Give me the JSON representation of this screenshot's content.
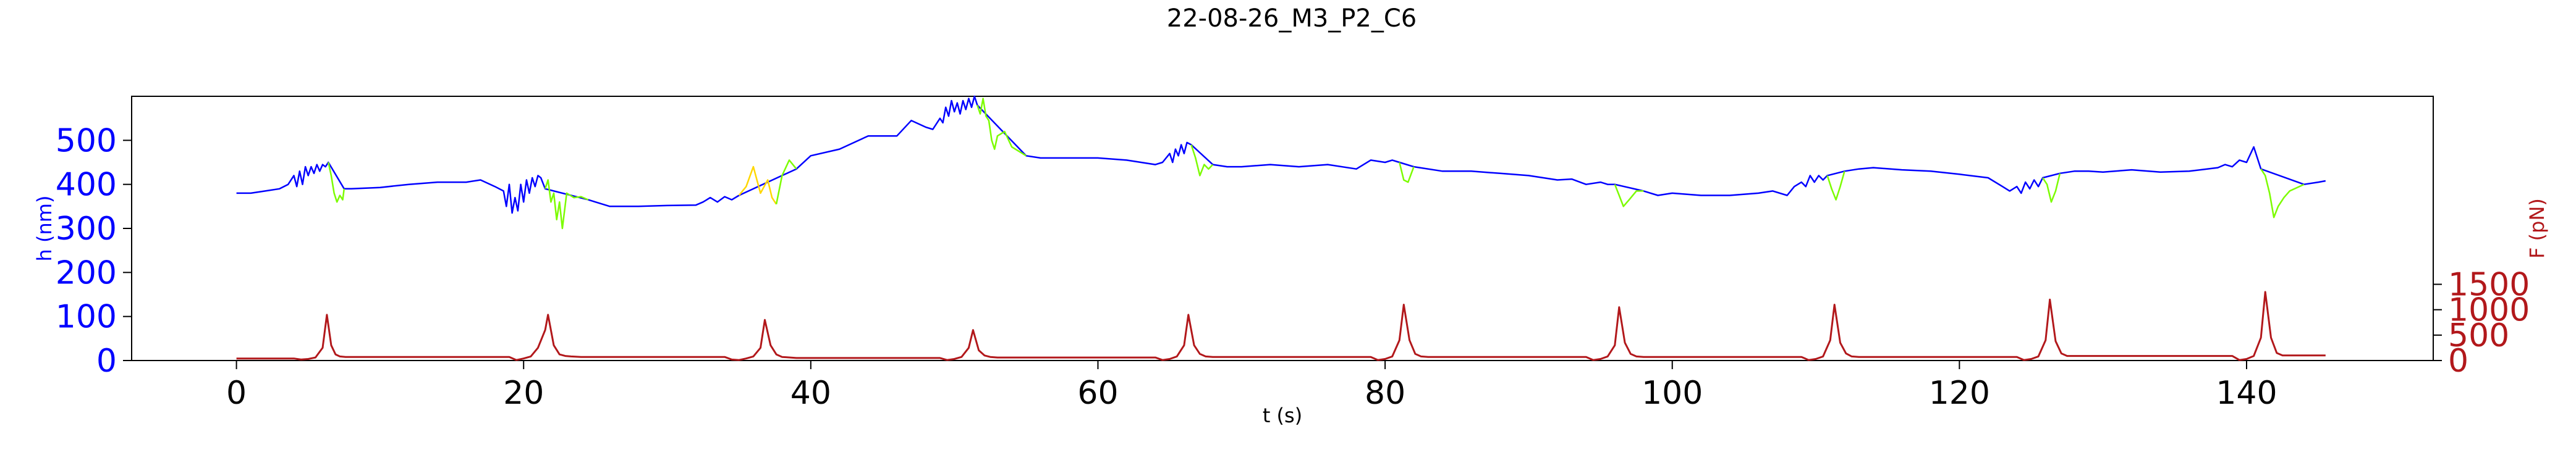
{
  "chart_data": {
    "type": "line",
    "title": "22-08-26_M3_P2_C6",
    "xlabel": "t (s)",
    "ylabel_left": "h (nm)",
    "ylabel_right": "F (pN)",
    "xlim": [
      -7.3,
      153
    ],
    "ylim_left": [
      0,
      600
    ],
    "ylim_right": [
      0,
      5200
    ],
    "x_ticks": [
      0,
      20,
      40,
      60,
      80,
      100,
      120,
      140
    ],
    "y_ticks_left": [
      0,
      100,
      200,
      300,
      400,
      500
    ],
    "y_ticks_right": [
      0,
      500,
      1000,
      1500
    ],
    "grid": false,
    "colors": {
      "h_base": "#0000ff",
      "h_green": "#7cfc00",
      "h_yellow": "#ffd700",
      "force": "#b2181b",
      "axis_left": "#0000ff",
      "axis_right": "#b2181b"
    },
    "series": [
      {
        "axis": "left",
        "color": "#0000ff",
        "x": [
          0,
          1,
          2,
          3,
          3.6,
          4.0,
          4.2,
          4.4,
          4.6,
          4.8,
          5.0,
          5.2,
          5.4,
          5.6,
          5.8,
          6.0,
          6.2,
          6.4,
          7.5,
          8,
          10,
          12,
          14,
          16,
          17,
          18,
          18.6,
          18.8,
          19.0,
          19.2,
          19.4,
          19.6,
          19.8,
          20.0,
          20.2,
          20.4,
          20.6,
          20.8,
          21.0,
          21.2,
          21.5,
          24.5,
          25,
          26,
          28,
          30,
          32,
          32.5,
          33,
          33.5,
          34,
          34.5,
          35,
          39,
          40,
          42,
          44,
          45.5,
          46,
          47,
          48,
          48.5,
          49,
          49.2,
          49.4,
          49.6,
          49.8,
          50.0,
          50.2,
          50.4,
          50.6,
          50.8,
          51.0,
          51.2,
          51.4,
          51.6,
          55,
          56,
          58,
          60,
          62,
          63,
          64,
          64.5,
          65,
          65.2,
          65.4,
          65.6,
          65.8,
          66.0,
          66.2,
          66.5,
          68,
          69,
          70,
          72,
          74,
          76,
          78,
          79,
          80,
          80.5,
          81,
          82,
          84,
          86,
          88,
          90,
          92,
          93,
          94,
          95,
          95.5,
          96,
          98,
          99,
          100,
          102,
          104,
          106,
          107,
          108,
          108.5,
          109,
          109.3,
          109.6,
          109.9,
          110.2,
          110.5,
          110.8,
          112,
          113,
          114,
          116,
          118,
          120,
          122,
          123,
          123.5,
          124,
          124.3,
          124.6,
          124.9,
          125.2,
          125.5,
          125.8,
          127,
          128,
          129,
          130,
          132,
          134,
          136,
          138,
          138.5,
          139,
          139.5,
          140,
          140.5,
          141,
          144,
          145,
          145.5
        ],
        "y": [
          380,
          380,
          385,
          390,
          400,
          420,
          395,
          430,
          400,
          440,
          420,
          440,
          425,
          445,
          430,
          445,
          440,
          450,
          390,
          390,
          393,
          400,
          405,
          405,
          410,
          395,
          385,
          350,
          400,
          335,
          370,
          340,
          400,
          360,
          410,
          380,
          415,
          395,
          420,
          415,
          390,
          365,
          360,
          350,
          350,
          352,
          353,
          360,
          370,
          360,
          372,
          365,
          375,
          435,
          465,
          480,
          510,
          510,
          510,
          545,
          530,
          525,
          550,
          540,
          575,
          555,
          590,
          565,
          585,
          560,
          590,
          570,
          595,
          575,
          600,
          580,
          465,
          460,
          460,
          460,
          455,
          450,
          445,
          450,
          470,
          450,
          480,
          465,
          490,
          470,
          495,
          490,
          445,
          440,
          440,
          445,
          440,
          445,
          435,
          455,
          450,
          455,
          450,
          440,
          430,
          430,
          425,
          420,
          410,
          412,
          400,
          405,
          400,
          400,
          385,
          375,
          380,
          375,
          375,
          380,
          385,
          375,
          395,
          405,
          395,
          420,
          405,
          420,
          410,
          420,
          430,
          435,
          438,
          433,
          430,
          423,
          415,
          395,
          385,
          395,
          380,
          405,
          390,
          410,
          395,
          415,
          425,
          430,
          430,
          428,
          433,
          428,
          430,
          438,
          445,
          440,
          455,
          450,
          485,
          435,
          400,
          405,
          408
        ]
      },
      {
        "axis": "left",
        "color": "#7cfc00",
        "x": [
          6.4,
          6.6,
          6.8,
          7.0,
          7.2,
          7.4,
          7.5
        ],
        "y": [
          450,
          420,
          380,
          360,
          375,
          365,
          390
        ]
      },
      {
        "axis": "left",
        "color": "#7cfc00",
        "x": [
          21.5,
          21.7,
          21.9,
          22.1,
          22.3,
          22.5,
          22.7,
          23.0,
          23.5,
          24.0,
          24.5
        ],
        "y": [
          390,
          410,
          360,
          380,
          320,
          360,
          300,
          380,
          370,
          372,
          365
        ]
      },
      {
        "axis": "left",
        "color": "#ffd700",
        "x": [
          35,
          35.5,
          36,
          36.5,
          37,
          37.3,
          37.6
        ],
        "y": [
          375,
          395,
          440,
          380,
          410,
          370,
          355
        ]
      },
      {
        "axis": "left",
        "color": "#7cfc00",
        "x": [
          37.6,
          38,
          38.5,
          39
        ],
        "y": [
          355,
          420,
          455,
          435
        ]
      },
      {
        "axis": "left",
        "color": "#7cfc00",
        "x": [
          51.6,
          51.8,
          52.0,
          52.2,
          52.4,
          52.6,
          52.8,
          53.0,
          53.5,
          54,
          55
        ],
        "y": [
          580,
          560,
          595,
          555,
          545,
          500,
          480,
          510,
          520,
          485,
          465
        ]
      },
      {
        "axis": "left",
        "color": "#7cfc00",
        "x": [
          66.5,
          66.8,
          67.1,
          67.4,
          67.7,
          68
        ],
        "y": [
          490,
          460,
          420,
          445,
          435,
          445
        ]
      },
      {
        "axis": "left",
        "color": "#7cfc00",
        "x": [
          81,
          81.3,
          81.6,
          82
        ],
        "y": [
          450,
          410,
          405,
          440
        ]
      },
      {
        "axis": "left",
        "color": "#7cfc00",
        "x": [
          96,
          96.3,
          96.6,
          97,
          97.5,
          98
        ],
        "y": [
          400,
          375,
          350,
          365,
          385,
          385
        ]
      },
      {
        "axis": "left",
        "color": "#7cfc00",
        "x": [
          110.8,
          111.1,
          111.4,
          111.7,
          112
        ],
        "y": [
          420,
          390,
          365,
          395,
          430
        ]
      },
      {
        "axis": "left",
        "color": "#7cfc00",
        "x": [
          125.8,
          126.1,
          126.4,
          126.7,
          127
        ],
        "y": [
          415,
          400,
          360,
          385,
          425
        ]
      },
      {
        "axis": "left",
        "color": "#7cfc00",
        "x": [
          141,
          141.3,
          141.6,
          141.9,
          142.2,
          142.6,
          143,
          144
        ],
        "y": [
          435,
          420,
          380,
          325,
          350,
          370,
          385,
          400
        ]
      },
      {
        "axis": "right",
        "color": "#b2181b",
        "x": [
          0,
          4,
          4.5,
          5,
          5.5,
          6,
          6.3,
          6.6,
          6.9,
          7.2,
          7.6,
          8,
          9,
          19,
          19.5,
          20,
          20.5,
          21,
          21.5,
          21.7,
          22.1,
          22.5,
          22.9,
          23.3,
          24,
          25,
          34,
          34.5,
          35,
          35.5,
          36,
          36.5,
          36.8,
          37.2,
          37.6,
          38,
          39,
          40,
          49,
          49.5,
          50,
          50.5,
          51,
          51.3,
          51.7,
          52.1,
          52.5,
          53,
          54,
          64,
          64.5,
          65,
          65.5,
          66,
          66.3,
          66.7,
          67.1,
          67.5,
          68,
          69,
          79,
          79.5,
          80,
          80.5,
          81,
          81.3,
          81.7,
          82.1,
          82.5,
          83,
          84,
          94,
          94.5,
          95,
          95.5,
          96,
          96.3,
          96.7,
          97.1,
          97.5,
          98,
          99,
          109,
          109.5,
          110,
          110.5,
          111,
          111.3,
          111.7,
          112.1,
          112.5,
          113,
          114,
          124,
          124.5,
          125,
          125.5,
          126,
          126.3,
          126.7,
          127.1,
          127.5,
          128,
          129,
          139,
          139.5,
          140,
          140.5,
          141,
          141.3,
          141.7,
          142.1,
          142.5,
          143,
          145.5
        ],
        "y": [
          40,
          40,
          20,
          30,
          60,
          250,
          900,
          300,
          120,
          80,
          70,
          70,
          70,
          70,
          10,
          40,
          80,
          250,
          600,
          900,
          300,
          120,
          90,
          80,
          70,
          70,
          70,
          20,
          10,
          40,
          80,
          250,
          800,
          300,
          120,
          70,
          50,
          50,
          50,
          10,
          30,
          70,
          250,
          600,
          200,
          100,
          70,
          60,
          60,
          60,
          10,
          30,
          80,
          300,
          900,
          300,
          130,
          80,
          70,
          70,
          70,
          10,
          30,
          80,
          400,
          1100,
          400,
          130,
          80,
          70,
          70,
          70,
          10,
          30,
          80,
          300,
          1050,
          350,
          130,
          80,
          70,
          70,
          70,
          10,
          30,
          80,
          400,
          1100,
          350,
          140,
          80,
          70,
          70,
          70,
          10,
          30,
          80,
          400,
          1200,
          380,
          140,
          90,
          90,
          90,
          90,
          10,
          30,
          90,
          450,
          1350,
          450,
          150,
          100,
          100,
          100
        ]
      }
    ]
  }
}
